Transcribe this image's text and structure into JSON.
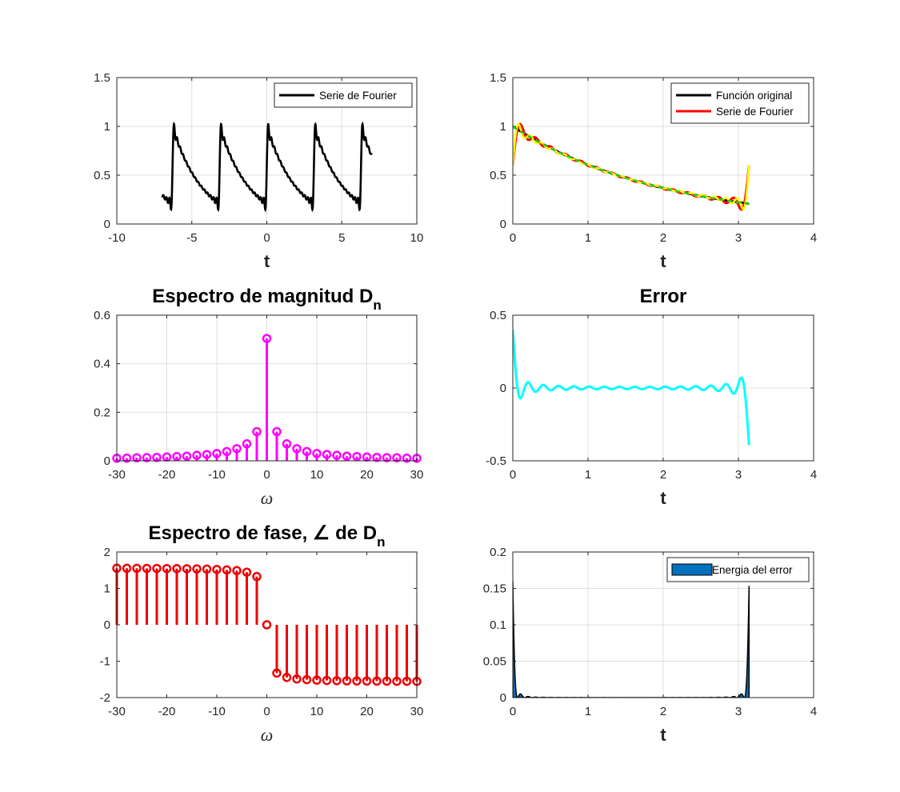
{
  "chart_data": [
    {
      "id": "periodic",
      "type": "line",
      "title": "",
      "xlabel": "t",
      "xlim": [
        -10,
        10
      ],
      "ylim": [
        0,
        1.5
      ],
      "xticks": [
        "-10",
        "-5",
        "0",
        "5",
        "10"
      ],
      "yticks": [
        "0",
        "0.5",
        "1",
        "1.5"
      ],
      "grid": true,
      "legend": {
        "position": "top-right",
        "entries": [
          {
            "label": "Serie de Fourier",
            "color": "#000000"
          }
        ]
      },
      "series": [
        {
          "name": "Serie de Fourier",
          "color": "#000000",
          "x_range": [
            -7,
            7
          ],
          "period": 3.1416,
          "description_fn": "exp(-t/2) on [0,pi), periodic"
        }
      ]
    },
    {
      "id": "compare",
      "type": "line",
      "title": "",
      "xlabel": "t",
      "xlim": [
        0,
        4
      ],
      "ylim": [
        0,
        1.5
      ],
      "xticks": [
        "0",
        "1",
        "2",
        "3",
        "4"
      ],
      "yticks": [
        "0",
        "0.5",
        "1",
        "1.5"
      ],
      "grid": true,
      "legend": {
        "position": "top-right",
        "entries": [
          {
            "label": "Función original",
            "color": "#000000"
          },
          {
            "label": "Serie de Fourier",
            "color": "#ff0000"
          }
        ]
      },
      "series": [
        {
          "name": "Función original",
          "color": "#000000"
        },
        {
          "name": "Serie de Fourier",
          "color": "#ff0000"
        }
      ],
      "extra_colors": [
        "#ffff00",
        "#22cc22"
      ]
    },
    {
      "id": "magnitude",
      "type": "stem",
      "title": "Espectro de magnitud D",
      "title_sub": "n",
      "xlabel": "ω",
      "xlim": [
        -30,
        30
      ],
      "ylim": [
        0,
        0.6
      ],
      "xticks": [
        "-30",
        "-20",
        "-10",
        "0",
        "10",
        "20",
        "30"
      ],
      "yticks": [
        "0",
        "0.2",
        "0.4",
        "0.6"
      ],
      "grid": true,
      "color": "#ff00ff",
      "x": [
        -30,
        -28,
        -26,
        -24,
        -22,
        -20,
        -18,
        -16,
        -14,
        -12,
        -10,
        -8,
        -6,
        -4,
        -2,
        0,
        2,
        4,
        6,
        8,
        10,
        12,
        14,
        16,
        18,
        20,
        22,
        24,
        26,
        28,
        30
      ],
      "values": [
        0.0105,
        0.011,
        0.0125,
        0.013,
        0.014,
        0.0155,
        0.0175,
        0.019,
        0.0225,
        0.026,
        0.03,
        0.038,
        0.05,
        0.07,
        0.12,
        0.504,
        0.12,
        0.07,
        0.05,
        0.038,
        0.03,
        0.026,
        0.0225,
        0.019,
        0.0175,
        0.0155,
        0.014,
        0.013,
        0.0125,
        0.011,
        0.0105
      ]
    },
    {
      "id": "error",
      "type": "line",
      "title": "Error",
      "xlabel": "t",
      "xlim": [
        0,
        4
      ],
      "ylim": [
        -0.5,
        0.5
      ],
      "xticks": [
        "0",
        "1",
        "2",
        "3",
        "4"
      ],
      "yticks": [
        "-0.5",
        "0",
        "0.5"
      ],
      "grid": true,
      "series": [
        {
          "name": "",
          "color": "#00ffff"
        }
      ]
    },
    {
      "id": "phase",
      "type": "stem",
      "title": "Espectro de fase, ∠ de D",
      "title_sub": "n",
      "xlabel": "ω",
      "xlim": [
        -30,
        30
      ],
      "ylim": [
        -2,
        2
      ],
      "xticks": [
        "-30",
        "-20",
        "-10",
        "0",
        "10",
        "20",
        "30"
      ],
      "yticks": [
        "-2",
        "-1",
        "0",
        "1",
        "2"
      ],
      "grid": false,
      "color": "#ee0000",
      "x": [
        -30,
        -28,
        -26,
        -24,
        -22,
        -20,
        -18,
        -16,
        -14,
        -12,
        -10,
        -8,
        -6,
        -4,
        -2,
        0,
        2,
        4,
        6,
        8,
        10,
        12,
        14,
        16,
        18,
        20,
        22,
        24,
        26,
        28,
        30
      ],
      "values": [
        1.554,
        1.552,
        1.551,
        1.549,
        1.548,
        1.545,
        1.543,
        1.539,
        1.535,
        1.529,
        1.52,
        1.508,
        1.488,
        1.446,
        1.326,
        0,
        -1.326,
        -1.446,
        -1.488,
        -1.508,
        -1.52,
        -1.529,
        -1.535,
        -1.539,
        -1.543,
        -1.545,
        -1.548,
        -1.549,
        -1.551,
        -1.552,
        -1.554
      ]
    },
    {
      "id": "energy",
      "type": "area",
      "title": "",
      "xlabel": "t",
      "xlim": [
        0,
        4
      ],
      "ylim": [
        0,
        0.2
      ],
      "xticks": [
        "0",
        "1",
        "2",
        "3",
        "4"
      ],
      "yticks": [
        "0",
        "0.05",
        "0.1",
        "0.15",
        "0.2"
      ],
      "grid": true,
      "color": "#0072bd",
      "legend": {
        "position": "top-right",
        "entries": [
          {
            "label": "Energia del error",
            "color": "#0072bd"
          }
        ]
      },
      "series": [
        {
          "name": "Energia del error",
          "color": "#0072bd"
        }
      ]
    }
  ]
}
